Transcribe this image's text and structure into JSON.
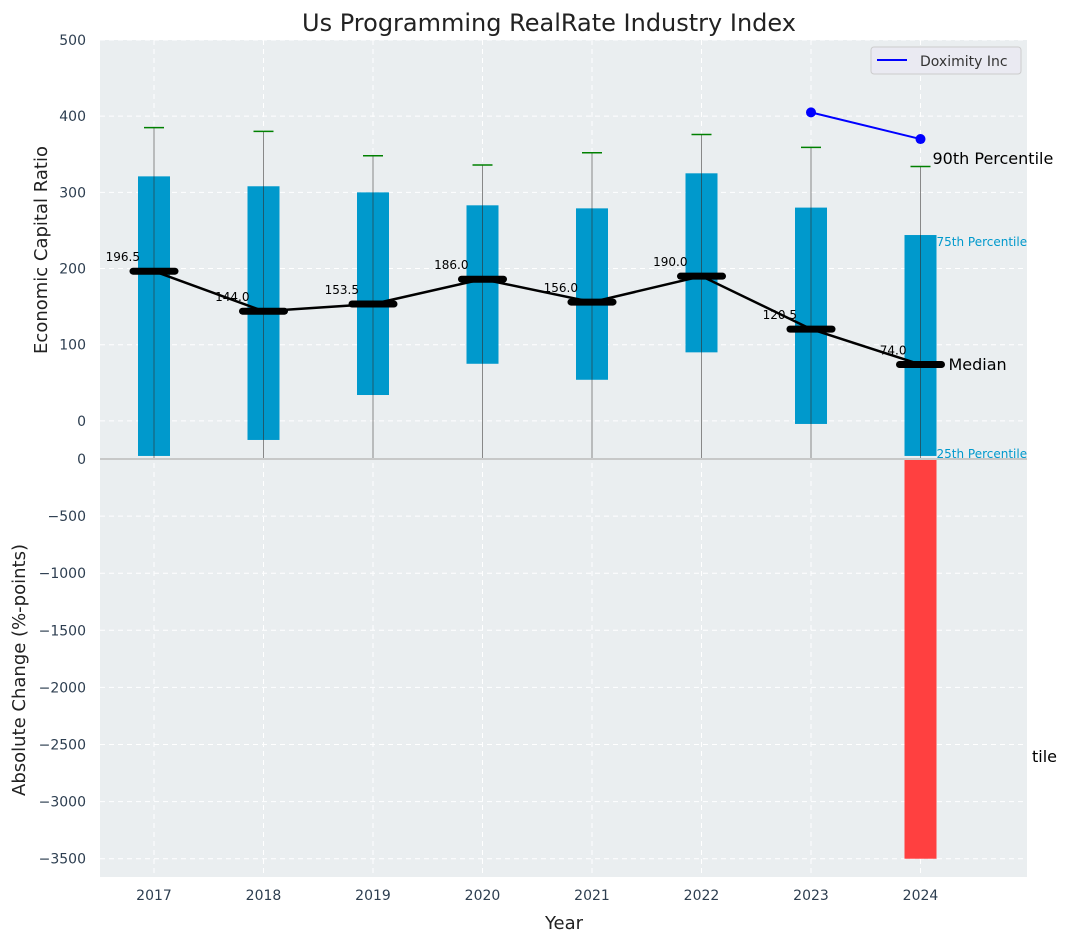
{
  "chart_data": {
    "type": "bar",
    "title": "Us Programming RealRate Industry Index",
    "xlabel": "Year",
    "categories": [
      "2017",
      "2018",
      "2019",
      "2020",
      "2021",
      "2022",
      "2023",
      "2024"
    ],
    "top_panel": {
      "ylabel": "Economic Capital Ratio",
      "ylim": [
        -50,
        500
      ],
      "yticks": [
        0,
        100,
        200,
        300,
        400,
        500
      ],
      "p25": [
        -46,
        -25,
        34,
        75,
        54,
        90,
        -4,
        -46
      ],
      "p75": [
        321,
        308,
        300,
        283,
        279,
        325,
        280,
        244
      ],
      "p90": [
        385,
        380,
        348,
        336,
        352,
        376,
        359,
        334
      ],
      "median": [
        196.5,
        144.0,
        153.5,
        186.0,
        156.0,
        190.0,
        120.5,
        74.0
      ],
      "median_labels": [
        "196.5",
        "144.0",
        "153.5",
        "186.0",
        "156.0",
        "190.0",
        "120.5",
        "74.0"
      ],
      "series": [
        {
          "name": "Doximity Inc",
          "x": [
            "2023",
            "2024"
          ],
          "values": [
            405,
            370
          ],
          "color": "#0000ff"
        }
      ],
      "annotations": {
        "p90": "90th Percentile",
        "median": "Median",
        "p75": "75th Percentile",
        "p25": "25th Percentile"
      },
      "legend": "top-right"
    },
    "bottom_panel": {
      "ylabel": "Absolute Change (%-points)",
      "ylim": [
        -3660,
        0
      ],
      "yticks": [
        0,
        -500,
        -1000,
        -1500,
        -2000,
        -2500,
        -3000,
        -3500
      ],
      "ytick_labels": [
        "0",
        "−500",
        "−1000",
        "−1500",
        "−2000",
        "−2500",
        "−3000",
        "−3500"
      ],
      "values": [
        null,
        null,
        null,
        null,
        null,
        null,
        null,
        -3500
      ],
      "clipped_annotation": "tile"
    },
    "colors": {
      "box": "#0099cc",
      "whisker_cap": "#008000",
      "negative": "#ff4040",
      "bg": "#eaeef0"
    },
    "grid": true
  }
}
